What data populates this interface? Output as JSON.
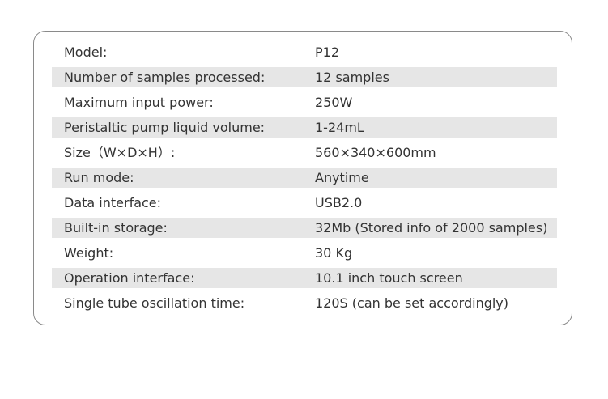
{
  "table": {
    "rows": [
      [
        "Model:",
        "P12"
      ],
      [
        "Number of samples processed:",
        "12 samples"
      ],
      [
        "Maximum input power:",
        "250W"
      ],
      [
        "Peristaltic pump liquid volume:",
        "1-24mL"
      ],
      [
        "Size（W×D×H）:",
        "560×340×600mm"
      ],
      [
        "Run mode:",
        "Anytime"
      ],
      [
        "Data interface:",
        "USB2.0"
      ],
      [
        "Built-in storage:",
        "32Mb (Stored info of 2000 samples)"
      ],
      [
        "Weight:",
        "30 Kg"
      ],
      [
        "Operation interface:",
        "10.1 inch touch screen"
      ],
      [
        "Single tube oscillation time:",
        "120S (can be set accordingly)"
      ]
    ]
  }
}
